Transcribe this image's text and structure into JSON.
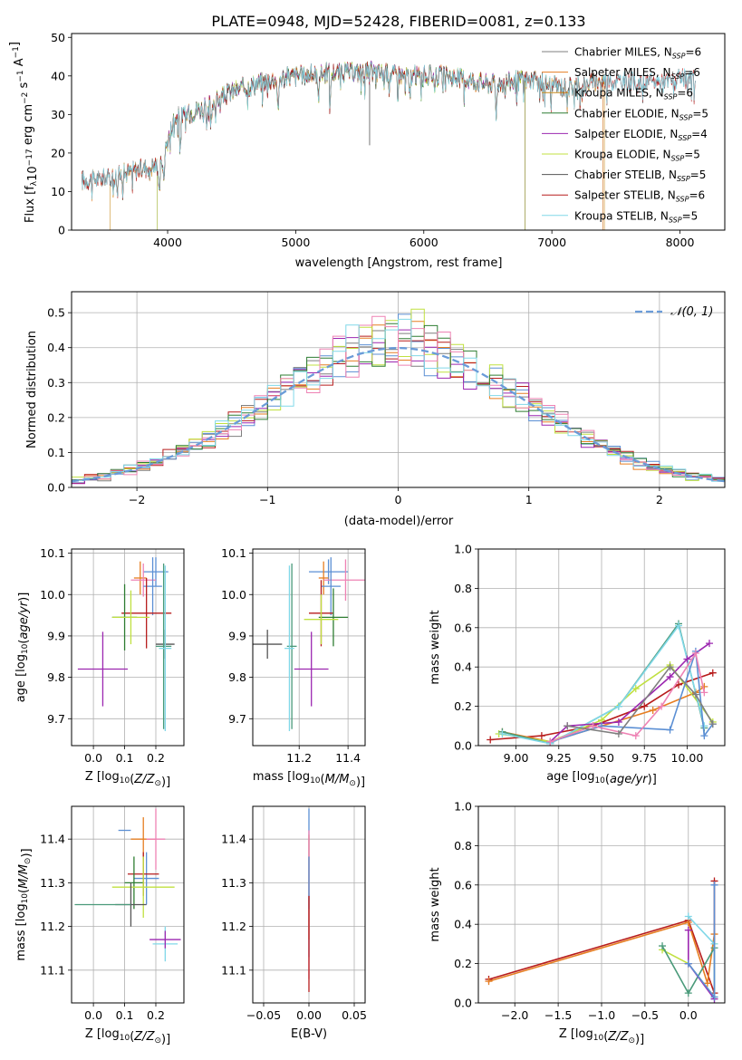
{
  "figure_title": "PLATE=0948, MJD=52428, FIBERID=0081, z=0.133",
  "colors": {
    "palette": [
      "#7f7f7f",
      "#e67e22",
      "#c88a1a",
      "#2e7d32",
      "#9c27b0",
      "#c0e040",
      "#555555",
      "#b71c1c",
      "#80d8e8",
      "#5b8fd4",
      "#ee82b4",
      "#4a9a7a"
    ],
    "normal_line": "#6a9bd8",
    "grid": "#b0b0b0"
  },
  "chart_data": [
    {
      "id": "spectrum",
      "type": "line",
      "title": "PLATE=0948, MJD=52428, FIBERID=0081, z=0.133",
      "xlabel": "wavelength [Angstrom, rest frame]",
      "ylabel": "Flux [f_λ 10^-17 erg cm^-2 s^-1 A^-1]",
      "ylabel_parts": {
        "main": "Flux [f",
        "sub": "λ",
        "mid": "10",
        "sup1": "−17",
        "mid2": " erg cm",
        "sup2": "−2",
        "mid3": " s",
        "sup3": "−1",
        "end": " A",
        "sup4": "−1",
        "close": "]"
      },
      "xlim": [
        3250,
        8350
      ],
      "ylim": [
        0,
        51
      ],
      "xticks": [
        4000,
        5000,
        6000,
        7000,
        8000
      ],
      "yticks": [
        0,
        10,
        20,
        30,
        40,
        50
      ],
      "grid": false,
      "legend_position": "top-right",
      "continuum_knots": {
        "x": [
          3400,
          3600,
          3800,
          3950,
          4050,
          4300,
          4500,
          4800,
          5000,
          5300,
          5600,
          5900,
          6200,
          6500,
          6800,
          7100,
          7400,
          7700,
          8000,
          8100
        ],
        "y": [
          13,
          14,
          16,
          17,
          29,
          32,
          36,
          39,
          40,
          41,
          41,
          40,
          40,
          38,
          39,
          37,
          39,
          38,
          39,
          39
        ]
      },
      "series": [
        {
          "name": "Chabrier MILES",
          "nssp": 6,
          "range": [
            3330,
            7400
          ]
        },
        {
          "name": "Salpeter MILES",
          "nssp": 6,
          "range": [
            3330,
            7400
          ]
        },
        {
          "name": "Kroupa MILES",
          "nssp": 6,
          "range": [
            3550,
            7410
          ]
        },
        {
          "name": "Chabrier ELODIE",
          "nssp": 5,
          "range": [
            3920,
            6790
          ]
        },
        {
          "name": "Salpeter ELODIE",
          "nssp": 4,
          "range": [
            3920,
            6790
          ]
        },
        {
          "name": "Kroupa ELODIE",
          "nssp": 5,
          "range": [
            3920,
            6790
          ]
        },
        {
          "name": "Chabrier STELIB",
          "nssp": 5,
          "range": [
            3330,
            8120
          ]
        },
        {
          "name": "Salpeter STELIB",
          "nssp": 6,
          "range": [
            3330,
            8120
          ]
        },
        {
          "name": "Kroupa STELIB",
          "nssp": 5,
          "range": [
            3330,
            8120
          ]
        }
      ]
    },
    {
      "id": "residual-hist",
      "type": "line",
      "xlabel": "(data-model)/error",
      "ylabel": "Normed distribution",
      "xlim": [
        -2.5,
        2.5
      ],
      "ylim": [
        0,
        0.56
      ],
      "xticks": [
        -2,
        -1,
        0,
        1,
        2
      ],
      "yticks": [
        0.0,
        0.1,
        0.2,
        0.3,
        0.4,
        0.5
      ],
      "grid": true,
      "legend_position": "top-right",
      "legend": "𝒩(0, 1)",
      "bin_width": 0.1,
      "histogram_count": 9
    },
    {
      "id": "age-vs-Z",
      "type": "scatter",
      "xlabel": "Z [log10(Z/Z☉)]",
      "ylabel": "age [log10(age/yr)]",
      "xlim": [
        -0.07,
        0.29
      ],
      "ylim": [
        9.635,
        10.11
      ],
      "xticks": [
        0.0,
        0.1,
        0.2
      ],
      "yticks": [
        9.7,
        9.8,
        9.9,
        10.0,
        10.1
      ],
      "grid": true,
      "points": [
        {
          "x": 0.2,
          "xerr": 0.04,
          "y": 10.055,
          "yerr": 0.035
        },
        {
          "x": 0.15,
          "xerr": 0.02,
          "y": 10.04,
          "yerr": 0.04
        },
        {
          "x": 0.16,
          "xerr": 0.04,
          "y": 10.035,
          "yerr": 0.04
        },
        {
          "x": 0.19,
          "xerr": 0.03,
          "y": 10.02,
          "yerr": 0.07
        },
        {
          "x": 0.17,
          "xerr": 0.08,
          "y": 9.955,
          "yerr": 0.085
        },
        {
          "x": 0.1,
          "xerr": 0.04,
          "y": 9.945,
          "yerr": 0.08
        },
        {
          "x": 0.12,
          "xerr": 0.06,
          "y": 9.945,
          "yerr": 0.065
        },
        {
          "x": 0.23,
          "xerr": 0.03,
          "y": 9.88,
          "yerr": 0.035
        },
        {
          "x": 0.225,
          "xerr": 0.025,
          "y": 9.875,
          "yerr": 0.2
        },
        {
          "x": 0.23,
          "xerr": 0.02,
          "y": 9.87,
          "yerr": 0.2
        },
        {
          "x": 0.03,
          "xerr": 0.08,
          "y": 9.82,
          "yerr": 0.09
        }
      ]
    },
    {
      "id": "age-vs-mass",
      "type": "scatter",
      "xlabel": "mass [log10(M/M☉)]",
      "ylabel": "",
      "xlim": [
        11.01,
        11.47
      ],
      "ylim": [
        9.635,
        10.11
      ],
      "xticks": [
        11.2,
        11.4
      ],
      "yticks": [
        9.7,
        9.8,
        9.9,
        10.0,
        10.1
      ],
      "grid": true,
      "points": [
        {
          "x": 11.32,
          "xerr": 0.08,
          "y": 10.055,
          "yerr": 0.03
        },
        {
          "x": 11.3,
          "xerr": 0.02,
          "y": 10.04,
          "yerr": 0.04
        },
        {
          "x": 11.39,
          "xerr": 0.09,
          "y": 10.035,
          "yerr": 0.05
        },
        {
          "x": 11.33,
          "xerr": 0.04,
          "y": 10.02,
          "yerr": 0.07
        },
        {
          "x": 11.29,
          "xerr": 0.05,
          "y": 9.955,
          "yerr": 0.08
        },
        {
          "x": 11.34,
          "xerr": 0.06,
          "y": 9.945,
          "yerr": 0.07
        },
        {
          "x": 11.29,
          "xerr": 0.07,
          "y": 9.94,
          "yerr": 0.06
        },
        {
          "x": 11.07,
          "xerr": 0.06,
          "y": 9.88,
          "yerr": 0.035
        },
        {
          "x": 11.17,
          "xerr": 0.02,
          "y": 9.875,
          "yerr": 0.2
        },
        {
          "x": 11.16,
          "xerr": 0.02,
          "y": 9.87,
          "yerr": 0.2
        },
        {
          "x": 11.25,
          "xerr": 0.07,
          "y": 9.82,
          "yerr": 0.09
        }
      ]
    },
    {
      "id": "weight-vs-age",
      "type": "line",
      "xlabel": "age [log10(age/yr)]",
      "ylabel": "mass weight",
      "xlim": [
        8.78,
        10.22
      ],
      "ylim": [
        0,
        1.0
      ],
      "xticks": [
        9.0,
        9.25,
        9.5,
        9.75,
        10.0
      ],
      "xtick_labels": [
        "9.00",
        "9.25",
        "9.50",
        "9.75",
        "10.00"
      ],
      "yticks": [
        0.0,
        0.2,
        0.4,
        0.6,
        0.8,
        1.0
      ],
      "grid": true,
      "series": [
        {
          "x": [
            8.85,
            9.15,
            9.45,
            9.75,
            9.95,
            10.15
          ],
          "y": [
            0.03,
            0.05,
            0.1,
            0.2,
            0.31,
            0.37
          ]
        },
        {
          "x": [
            8.92,
            9.2,
            9.5,
            9.8,
            10.05,
            10.1
          ],
          "y": [
            0.07,
            0.02,
            0.1,
            0.18,
            0.27,
            0.3
          ]
        },
        {
          "x": [
            8.9,
            9.2,
            9.5,
            9.7,
            9.9,
            10.15
          ],
          "y": [
            0.06,
            0.02,
            0.13,
            0.29,
            0.41,
            0.12
          ]
        },
        {
          "x": [
            8.92,
            9.2,
            9.6,
            9.95,
            10.1
          ],
          "y": [
            0.07,
            0.01,
            0.2,
            0.62,
            0.09
          ]
        },
        {
          "x": [
            8.92,
            9.2,
            9.6,
            9.95,
            10.1
          ],
          "y": [
            0.06,
            0.01,
            0.2,
            0.61,
            0.1
          ]
        },
        {
          "x": [
            9.2,
            9.3,
            9.6,
            9.9,
            10.0,
            10.13
          ],
          "y": [
            0.02,
            0.1,
            0.12,
            0.35,
            0.44,
            0.52
          ]
        },
        {
          "x": [
            9.2,
            9.5,
            9.9,
            10.05,
            10.1,
            10.15
          ],
          "y": [
            0.02,
            0.1,
            0.08,
            0.48,
            0.05,
            0.11
          ]
        },
        {
          "x": [
            9.2,
            9.45,
            9.7,
            9.85,
            10.05,
            10.1
          ],
          "y": [
            0.02,
            0.1,
            0.05,
            0.2,
            0.47,
            0.27
          ]
        },
        {
          "x": [
            9.3,
            9.6,
            9.9,
            10.05,
            10.15
          ],
          "y": [
            0.1,
            0.06,
            0.4,
            0.26,
            0.11
          ]
        }
      ]
    },
    {
      "id": "mass-vs-Z",
      "type": "scatter",
      "xlabel": "Z [log10(Z/Z☉)]",
      "ylabel": "mass [log10(M/M☉)]",
      "xlim": [
        -0.07,
        0.29
      ],
      "ylim": [
        11.025,
        11.475
      ],
      "xticks": [
        0.0,
        0.1,
        0.2
      ],
      "yticks": [
        11.1,
        11.2,
        11.3,
        11.4
      ],
      "grid": true,
      "points": [
        {
          "x": 0.1,
          "xerr": 0.02,
          "y": 11.42,
          "yerr": 0.0
        },
        {
          "x": 0.16,
          "xerr": 0.04,
          "y": 11.4,
          "yerr": 0.05
        },
        {
          "x": 0.2,
          "xerr": 0.03,
          "y": 11.4,
          "yerr": 0.07
        },
        {
          "x": 0.17,
          "xerr": 0.04,
          "y": 11.31,
          "yerr": 0.06
        },
        {
          "x": 0.16,
          "xerr": 0.05,
          "y": 11.32,
          "yerr": 0.05
        },
        {
          "x": 0.13,
          "xerr": 0.03,
          "y": 11.3,
          "yerr": 0.06
        },
        {
          "x": 0.16,
          "xerr": 0.1,
          "y": 11.29,
          "yerr": 0.07
        },
        {
          "x": 0.12,
          "xerr": 0.05,
          "y": 11.25,
          "yerr": 0.05
        },
        {
          "x": 0.03,
          "xerr": 0.09,
          "y": 11.25,
          "yerr": 0.0
        },
        {
          "x": 0.23,
          "xerr": 0.04,
          "y": 11.16,
          "yerr": 0.04
        },
        {
          "x": 0.23,
          "xerr": 0.05,
          "y": 11.17,
          "yerr": 0.02
        }
      ]
    },
    {
      "id": "mass-vs-EBV",
      "type": "scatter",
      "xlabel": "E(B-V)",
      "ylabel": "",
      "xlim": [
        -0.062,
        0.062
      ],
      "ylim": [
        11.025,
        11.475
      ],
      "xticks": [
        -0.05,
        0.0,
        0.05
      ],
      "xtick_labels": [
        "−0.05",
        "0.00",
        "0.05"
      ],
      "yticks": [
        11.1,
        11.2,
        11.3,
        11.4
      ],
      "grid": true,
      "points": [
        {
          "x": 0.0,
          "y": 11.3,
          "yerr": 0.17
        },
        {
          "x": 0.0,
          "y": 11.29,
          "yerr": 0.12
        },
        {
          "x": 0.0,
          "y": 11.25,
          "yerr": 0.17
        },
        {
          "x": 0.0,
          "y": 11.3,
          "yerr": 0.06
        },
        {
          "x": 0.0,
          "y": 11.16,
          "yerr": 0.11
        }
      ]
    },
    {
      "id": "weight-vs-Z",
      "type": "line",
      "xlabel": "Z [log10(Z/Z☉)]",
      "ylabel": "mass weight",
      "xlim": [
        -2.42,
        0.42
      ],
      "ylim": [
        0,
        1.0
      ],
      "xticks": [
        -2.0,
        -1.5,
        -1.0,
        -0.5,
        0.0
      ],
      "xtick_labels": [
        "−2.0",
        "−1.5",
        "−1.0",
        "−0.5",
        "0.0"
      ],
      "yticks": [
        0.0,
        0.2,
        0.4,
        0.6,
        0.8,
        1.0
      ],
      "grid": true,
      "series": [
        {
          "x": [
            -2.3,
            0.0,
            0.3,
            0.3
          ],
          "y": [
            0.12,
            0.42,
            0.05,
            0.62
          ]
        },
        {
          "x": [
            -2.3,
            0.0,
            0.22,
            0.3
          ],
          "y": [
            0.11,
            0.41,
            0.1,
            0.35
          ]
        },
        {
          "x": [
            -0.3,
            0.0,
            0.3,
            0.3
          ],
          "y": [
            0.27,
            0.2,
            0.03,
            0.3
          ]
        },
        {
          "x": [
            -0.3,
            0.0,
            0.3
          ],
          "y": [
            0.29,
            0.05,
            0.28
          ]
        },
        {
          "x": [
            0.0,
            0.3,
            0.3
          ],
          "y": [
            0.44,
            0.3,
            0.02
          ]
        },
        {
          "x": [
            0.0,
            0.0,
            0.3
          ],
          "y": [
            0.37,
            0.2,
            0.02
          ]
        },
        {
          "x": [
            0.0,
            0.3,
            0.3
          ],
          "y": [
            0.2,
            0.03,
            0.6
          ]
        }
      ]
    }
  ]
}
